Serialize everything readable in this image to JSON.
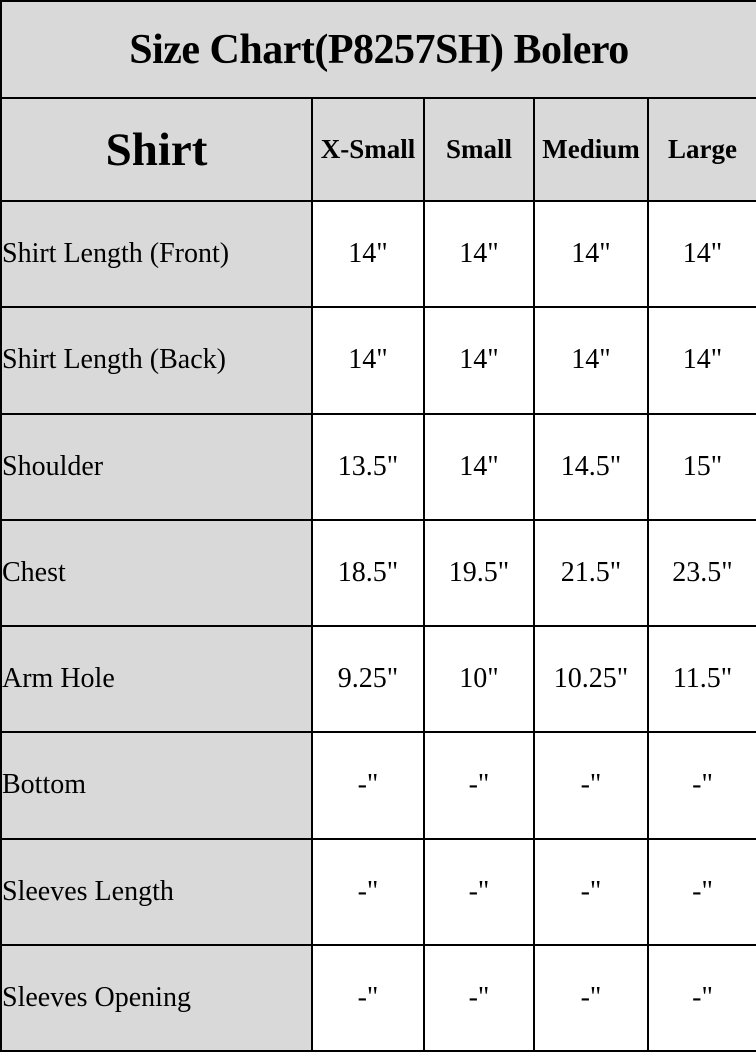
{
  "title": "Size Chart(P8257SH) Bolero",
  "chart_data": {
    "type": "table",
    "title": "Size Chart(P8257SH) Bolero",
    "corner_label": "Shirt",
    "columns": [
      "X-Small",
      "Small",
      "Medium",
      "Large"
    ],
    "rows": [
      {
        "label": "Shirt Length (Front)",
        "values": [
          "14\"",
          "14\"",
          "14\"",
          "14\""
        ]
      },
      {
        "label": "Shirt Length (Back)",
        "values": [
          "14\"",
          "14\"",
          "14\"",
          "14\""
        ]
      },
      {
        "label": "Shoulder",
        "values": [
          "13.5\"",
          "14\"",
          "14.5\"",
          "15\""
        ]
      },
      {
        "label": "Chest",
        "values": [
          "18.5\"",
          "19.5\"",
          "21.5\"",
          "23.5\""
        ]
      },
      {
        "label": "Arm Hole",
        "values": [
          "9.25\"",
          "10\"",
          "10.25\"",
          "11.5\""
        ]
      },
      {
        "label": "Bottom",
        "values": [
          "-\"",
          "-\"",
          "-\"",
          "-\""
        ]
      },
      {
        "label": "Sleeves Length",
        "values": [
          "-\"",
          "-\"",
          "-\"",
          "-\""
        ]
      },
      {
        "label": "Sleeves Opening",
        "values": [
          "-\"",
          "-\"",
          "-\"",
          "-\""
        ]
      }
    ],
    "layout_hints": {
      "header_bg": "#d9d9d9",
      "cell_bg": "#ffffff",
      "border_color": "#000000",
      "text_color": "#000000",
      "grid": "on"
    }
  }
}
